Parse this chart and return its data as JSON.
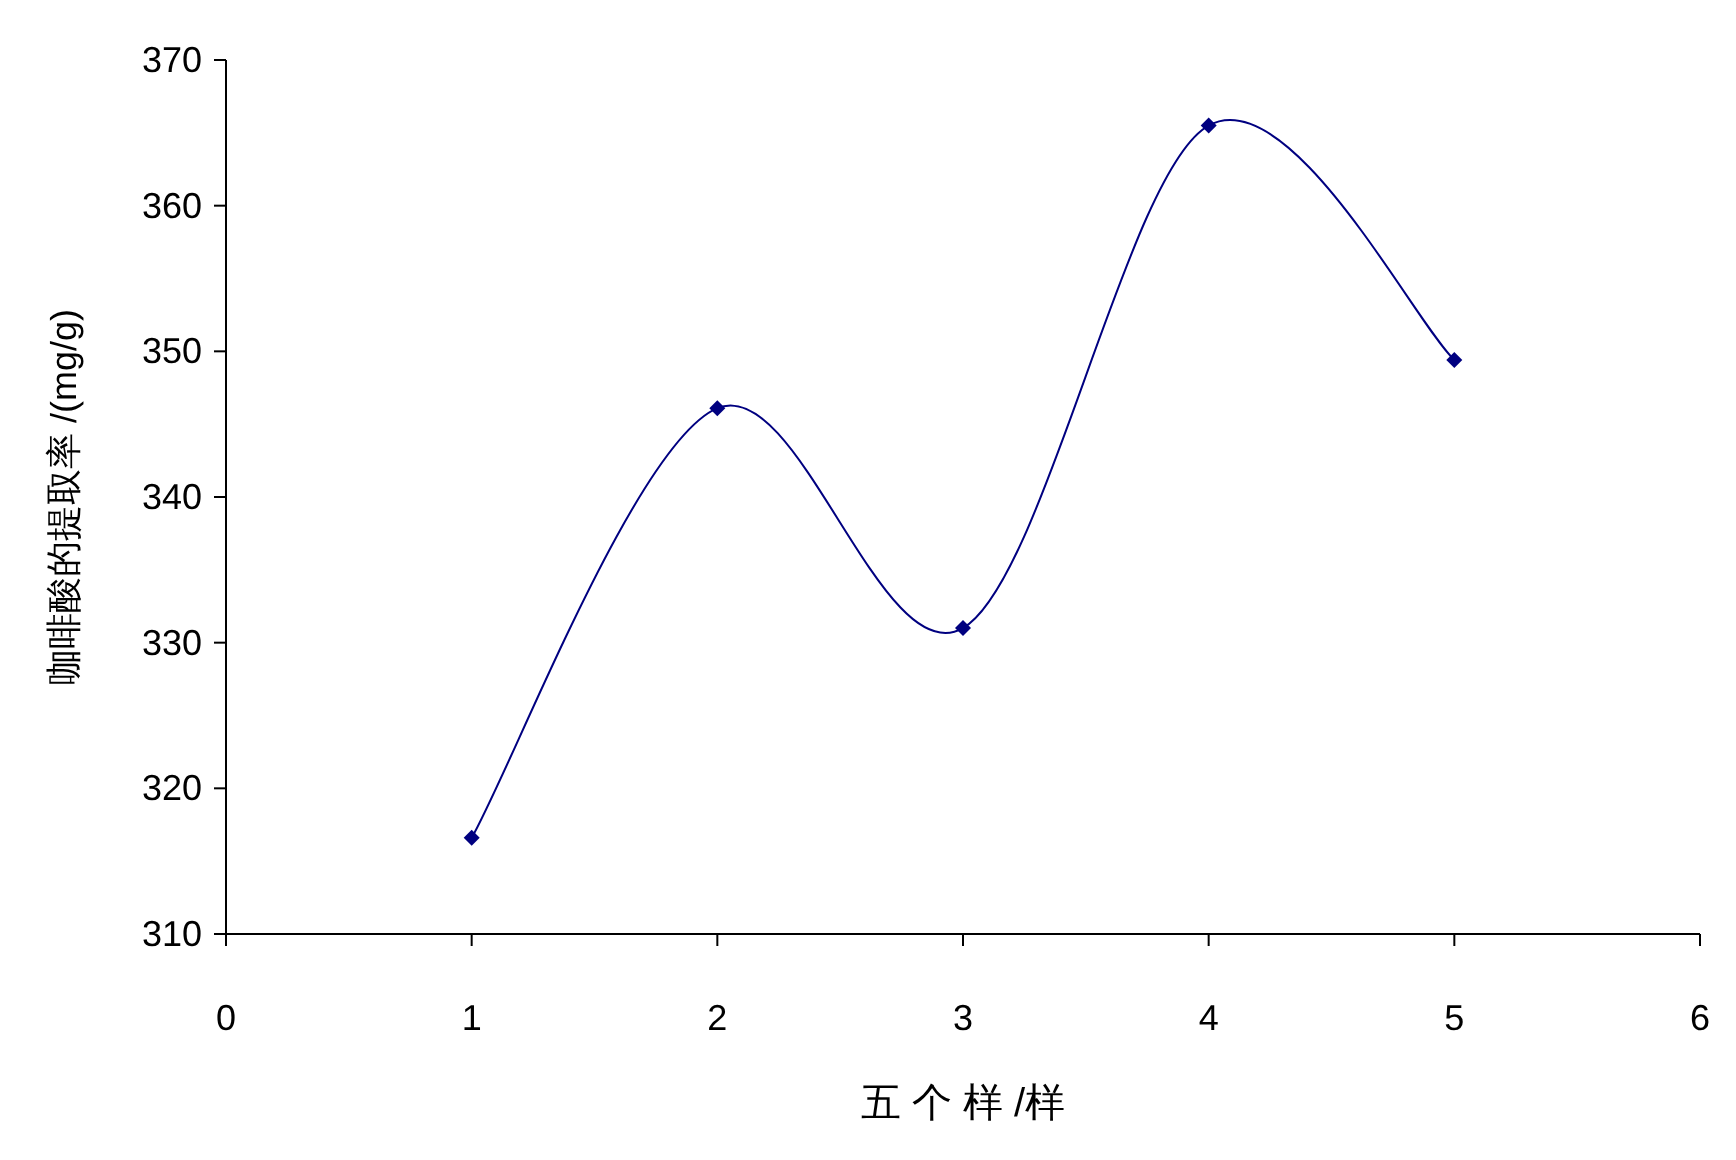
{
  "chart_data": {
    "type": "line",
    "xlabel": "五 个 样 /样",
    "ylabel": "咖啡酸的提取率 /(mg/g)",
    "x": [
      1,
      2,
      3,
      4,
      5
    ],
    "series": [
      {
        "color": "#000080",
        "values": [
          316.6,
          346.1,
          331.0,
          365.5,
          349.4
        ]
      }
    ],
    "xlim": [
      0,
      6
    ],
    "xticks": [
      0,
      1,
      2,
      3,
      4,
      5,
      6
    ],
    "ylim": [
      310,
      370
    ],
    "yticks": [
      310,
      320,
      330,
      340,
      350,
      360,
      370
    ],
    "marker": "diamond",
    "line_style": "solid",
    "grid": false
  }
}
